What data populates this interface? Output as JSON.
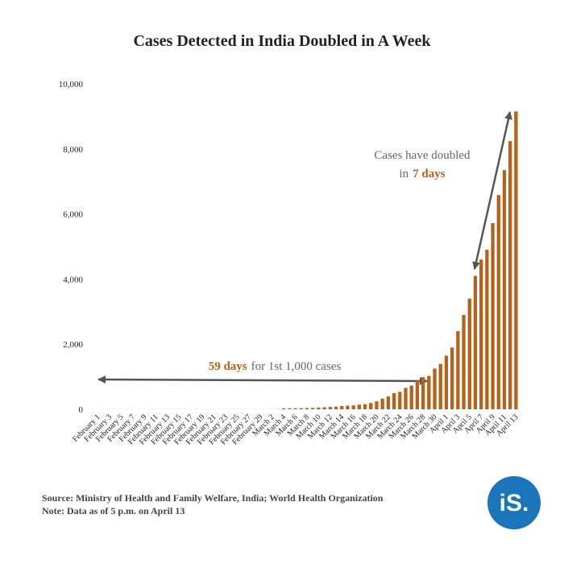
{
  "chart_data": {
    "type": "bar",
    "title": "Cases Detected in India Doubled in A Week",
    "categories": [
      "February 1",
      null,
      "February 3",
      null,
      "February 5",
      null,
      "February 7",
      null,
      "February 9",
      null,
      "February 11",
      null,
      "February 13",
      null,
      "February 15",
      null,
      "February 17",
      null,
      "February 19",
      null,
      "February 21",
      null,
      "February 23",
      null,
      "February 25",
      null,
      "February 27",
      null,
      "February 29",
      null,
      "March 2",
      null,
      "March 4",
      null,
      "March 6",
      null,
      "March 8",
      null,
      "March 10",
      null,
      "March 12",
      null,
      "March 14",
      null,
      "March 16",
      null,
      "March 18",
      null,
      "March 20",
      null,
      "March 22",
      null,
      "March 24",
      null,
      "March 26",
      null,
      "March 28",
      null,
      "March 30",
      null,
      "April 1",
      null,
      "April 3",
      null,
      "April 5",
      null,
      "April 7",
      null,
      "April 9",
      null,
      "April 11",
      null,
      "April 13"
    ],
    "values": [
      1,
      2,
      3,
      3,
      3,
      3,
      3,
      3,
      3,
      3,
      3,
      3,
      3,
      3,
      3,
      3,
      3,
      3,
      3,
      3,
      3,
      3,
      3,
      3,
      3,
      3,
      3,
      3,
      3,
      3,
      5,
      6,
      28,
      30,
      31,
      34,
      39,
      43,
      56,
      62,
      73,
      82,
      102,
      113,
      119,
      142,
      156,
      194,
      244,
      330,
      396,
      499,
      536,
      657,
      727,
      887,
      987,
      1024,
      1251,
      1397,
      1650,
      1900,
      2400,
      2900,
      3400,
      4100,
      4600,
      4900,
      5720,
      6580,
      7350,
      8240,
      9152
    ],
    "color": "#b5621b",
    "ylim": [
      0,
      10000
    ],
    "yticks": [
      0,
      {
        "value": 2000,
        "label": "2,000"
      },
      {
        "value": 4000,
        "label": "4,000"
      },
      {
        "value": 6000,
        "label": "6,000"
      },
      {
        "value": 8000,
        "label": "8,000"
      },
      {
        "value": 10000,
        "label": "10,000"
      }
    ],
    "grid": false,
    "annotations": {
      "doubled": {
        "line1": "Cases have doubled",
        "prefix": "in",
        "highlight": "7 days"
      },
      "first": {
        "highlight": "59 days",
        "rest": "for 1st 1,000 cases"
      }
    },
    "source": "Source: Ministry of Health and Family Welfare, India; World Health Organization",
    "note": "Note: Data as of 5 p.m. on April 13",
    "logo": "iS."
  }
}
